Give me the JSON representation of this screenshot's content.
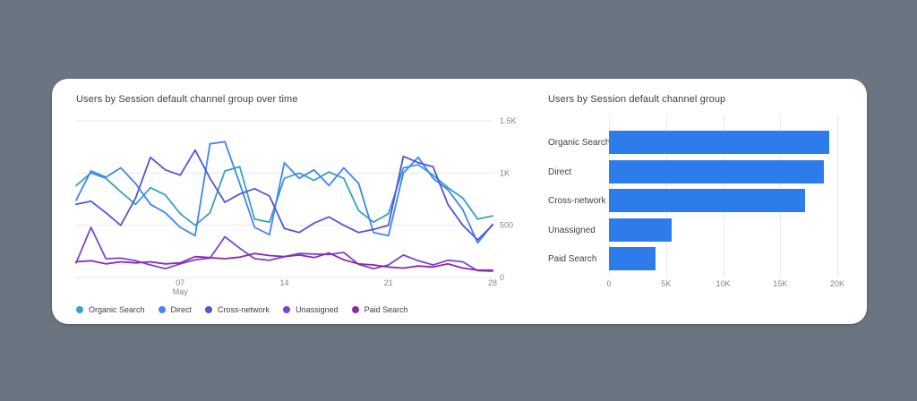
{
  "colors": {
    "page_background": "#6A7581",
    "card_background": "#FFFFFF",
    "gridline": "#E8EAED",
    "axis_text": "#80868B",
    "title_text": "#3C4043",
    "bar_color": "#2E7CEC"
  },
  "chart_data": [
    {
      "type": "line",
      "title": "Users by Session default channel group over time",
      "ylim": [
        0,
        1500
      ],
      "y_ticks": [
        {
          "value": 1500,
          "label": "1.5K"
        },
        {
          "value": 1000,
          "label": "1K"
        },
        {
          "value": 500,
          "label": "500"
        },
        {
          "value": 0,
          "label": "0"
        }
      ],
      "x_tick_labels": [
        {
          "index": 7,
          "label": "07",
          "sublabel": "May"
        },
        {
          "index": 14,
          "label": "14",
          "sublabel": ""
        },
        {
          "index": 21,
          "label": "21",
          "sublabel": ""
        },
        {
          "index": 28,
          "label": "28",
          "sublabel": ""
        }
      ],
      "grid": "horizontal",
      "legend_position": "bottom",
      "series": [
        {
          "name": "Organic Search",
          "color": "#369FC6",
          "values": [
            880,
            1000,
            950,
            820,
            700,
            860,
            790,
            610,
            500,
            620,
            1020,
            1060,
            560,
            530,
            950,
            1000,
            930,
            1010,
            950,
            640,
            530,
            610,
            1050,
            1080,
            980,
            860,
            760,
            560,
            590
          ]
        },
        {
          "name": "Direct",
          "color": "#4285F4",
          "values": [
            740,
            1020,
            960,
            1050,
            900,
            700,
            620,
            480,
            400,
            1280,
            1300,
            900,
            480,
            410,
            1100,
            950,
            1030,
            880,
            1050,
            900,
            430,
            400,
            1000,
            1150,
            950,
            840,
            650,
            330,
            510
          ]
        },
        {
          "name": "Cross-network",
          "color": "#5355D8",
          "values": [
            700,
            730,
            620,
            500,
            760,
            1150,
            1030,
            980,
            1220,
            950,
            720,
            800,
            850,
            780,
            470,
            430,
            520,
            580,
            500,
            430,
            460,
            500,
            1160,
            1100,
            1060,
            700,
            500,
            360,
            500
          ]
        },
        {
          "name": "Unassigned",
          "color": "#7A45D6",
          "values": [
            140,
            480,
            180,
            185,
            160,
            120,
            85,
            130,
            170,
            185,
            390,
            280,
            180,
            165,
            200,
            230,
            225,
            220,
            240,
            125,
            85,
            120,
            215,
            160,
            120,
            165,
            150,
            65,
            60
          ]
        },
        {
          "name": "Paid Search",
          "color": "#8C2BA8",
          "values": [
            150,
            160,
            130,
            150,
            140,
            150,
            130,
            140,
            200,
            190,
            180,
            195,
            230,
            210,
            200,
            215,
            190,
            235,
            170,
            130,
            120,
            100,
            90,
            110,
            100,
            130,
            90,
            70,
            70
          ]
        }
      ]
    },
    {
      "type": "bar",
      "title": "Users by Session default channel group",
      "orientation": "horizontal",
      "categories": [
        "Organic Search",
        "Direct",
        "Cross-network",
        "Unassigned",
        "Paid Search"
      ],
      "values": [
        19300,
        18800,
        17200,
        5500,
        4100
      ],
      "xlim": [
        0,
        20000
      ],
      "x_ticks": [
        {
          "value": 0,
          "label": "0"
        },
        {
          "value": 5000,
          "label": "5K"
        },
        {
          "value": 10000,
          "label": "10K"
        },
        {
          "value": 15000,
          "label": "15K"
        },
        {
          "value": 20000,
          "label": "20K"
        }
      ],
      "grid": "vertical",
      "bar_color": "#2E7CEC"
    }
  ]
}
